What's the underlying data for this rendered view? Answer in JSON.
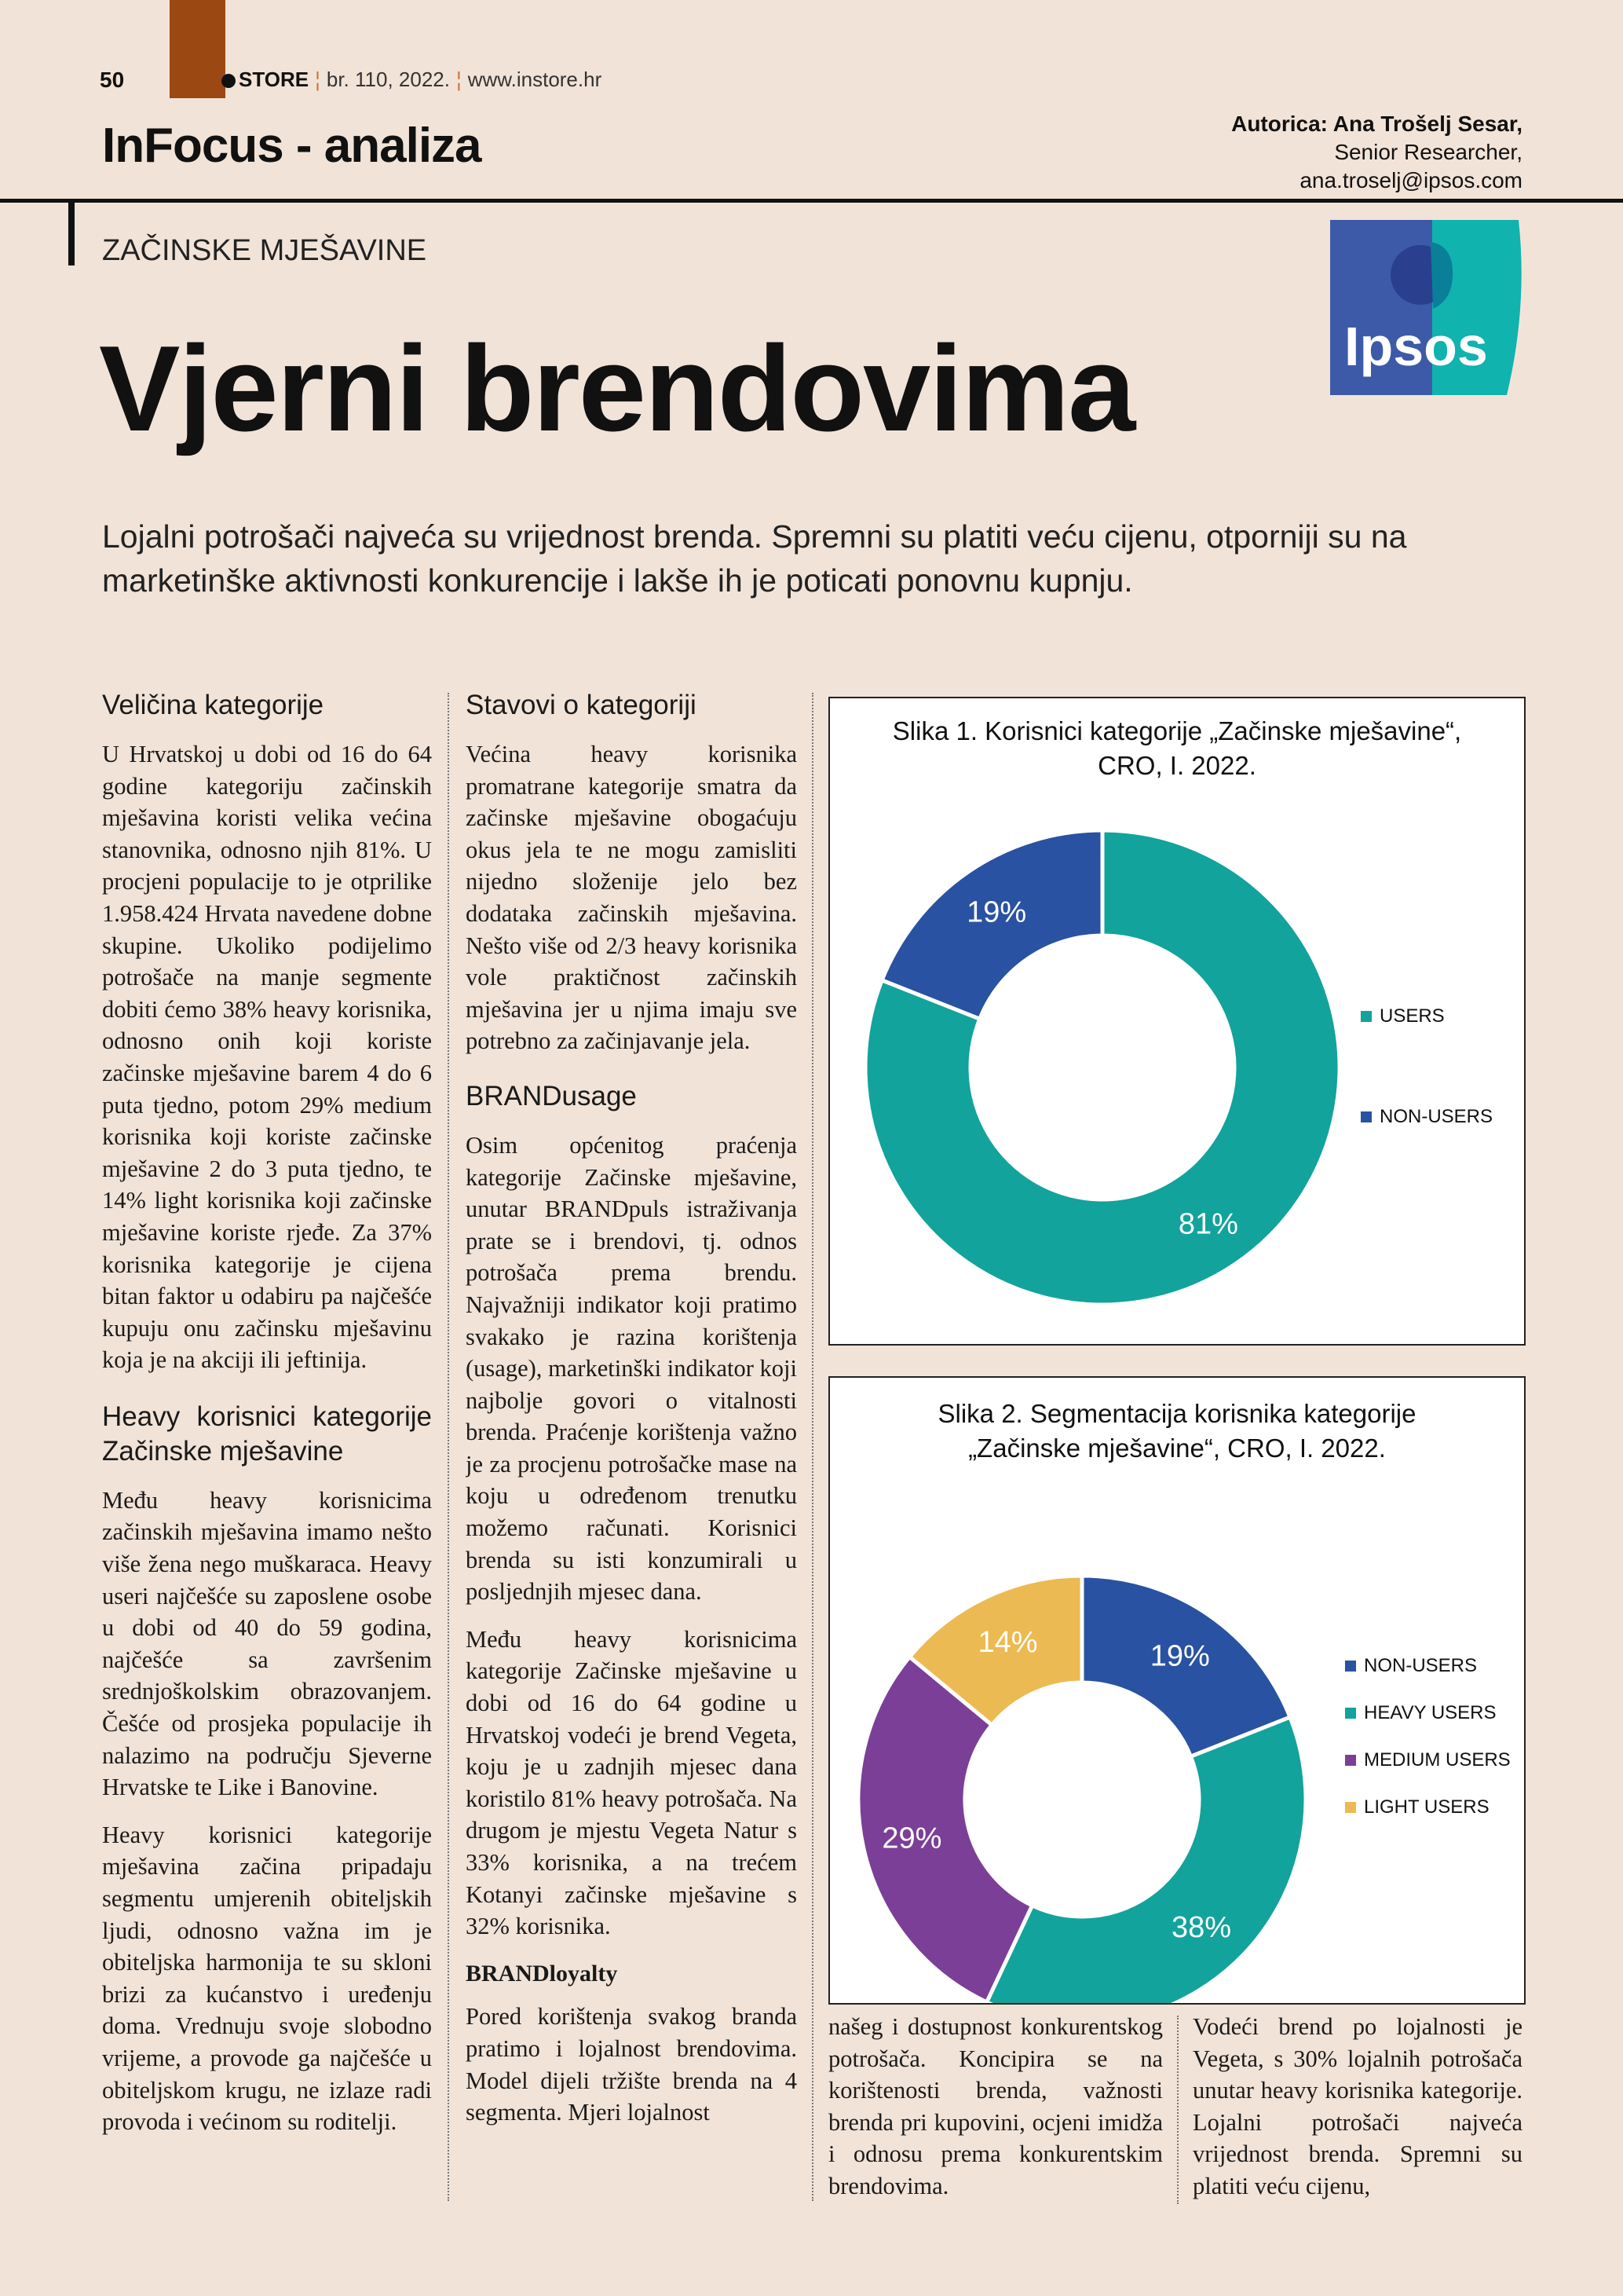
{
  "header": {
    "page_number": "50",
    "brand": "STORE",
    "issue": "br. 110, 2022.",
    "website": "www.instore.hr",
    "section": "InFocus - analiza",
    "author_name": "Autorica: Ana Trošelj Sesar,",
    "author_role": "Senior Researcher,",
    "author_email": "ana.troselj@ipsos.com"
  },
  "article": {
    "kicker": "ZAČINSKE MJEŠAVINE",
    "title": "Vjerni brendovima",
    "lead": "Lojalni potrošači najveća su vrijednost brenda. Spremni su platiti veću cijenu, otporniji su na marketinške aktivnosti konkurencije i lakše ih je poticati ponovnu kupnju.",
    "logo_text": "Ipsos",
    "col1": {
      "h1": "Veličina kategorije",
      "p1": "U Hrvatskoj u dobi od 16 do 64 godine kategoriju začinskih mješavina koristi velika većina stanovnika, odnosno njih 81%. U procjeni populacije to je otprilike 1.958.424 Hrvata navedene dobne skupine. Ukoliko podijelimo potrošače na manje segmente dobiti ćemo 38% heavy korisnika, odnosno onih koji koriste začinske mješavine barem 4 do 6 puta tjedno, potom 29% medium korisnika koji koriste začinske mješavine 2 do 3 puta tjedno, te 14% light korisnika koji začinske mješavine koriste rjeđe. Za 37% korisnika kategorije je cijena bitan faktor u odabiru pa najčešće kupuju onu začinsku mješavinu koja je na akciji ili jeftinija.",
      "h2": "Heavy korisnici kategorije Začinske mješavine",
      "p2": "Među heavy korisnicima začinskih mješavina imamo nešto više žena nego muškaraca. Heavy useri najčešće su zaposlene osobe u dobi od 40 do 59 godina, najčešće sa završenim srednjoškolskim obrazovanjem. Češće od prosjeka populacije ih nalazimo na području Sjeverne Hrvatske te Like i Banovine.",
      "p3": "Heavy korisnici kategorije mješavina začina pripadaju segmentu umjerenih obiteljskih ljudi, odnosno važna im je obiteljska harmonija te su skloni brizi za kućanstvo i uređenju doma. Vrednuju svoje slobodno vrijeme, a provode ga najčešće u obiteljskom krugu, ne izlaze radi provoda i većinom su roditelji."
    },
    "col2": {
      "h1": "Stavovi o kategoriji",
      "p1": "Većina heavy korisnika promatrane kategorije smatra da začinske mješavine obogaćuju okus jela te ne mogu zamisliti nijedno složenije jelo bez dodataka začinskih mješavina. Nešto više od 2/3 heavy korisnika vole praktičnost začinskih mješavina jer u njima imaju sve potrebno za začinjavanje jela.",
      "h2": "BRANDusage",
      "p2": "Osim općenitog praćenja kategorije Začinske mješavine, unutar BRANDpuls istraživanja prate se i brendovi, tj. odnos potrošača prema brendu. Najvažniji indikator koji pratimo svakako je razina korištenja (usage), marketinški indikator koji najbolje govori o vitalnosti brenda. Praćenje korištenja važno je za procjenu potrošačke mase na koju u određenom trenutku možemo računati. Korisnici brenda su isti konzumirali u posljednjih mjesec dana.",
      "p3": "Među heavy korisnicima kategorije Začinske mješavine u dobi od 16 do 64 godine u Hrvatskoj vodeći je brend Vegeta, koju je u zadnjih mjesec dana koristilo 81% heavy potrošača. Na drugom je mjestu Vegeta Natur s 33% korisnika, a na trećem Kotanyi začinske mješavine s 32% korisnika.",
      "h3": "BRANDloyalty",
      "p4": "Pored korištenja svakog branda pratimo i lojalnost brendovima. Model dijeli tržište brenda na 4 segmenta. Mjeri lojalnost"
    },
    "col3": {
      "p1": "našeg i dostupnost konkurentskog potrošača. Koncipira se na korištenosti brenda, važnosti brenda pri kupovini, ocjeni imidža i odnosu prema konkurentskim brendovima."
    },
    "col4": {
      "p1": "Vodeći brend po lojalnosti je Vegeta, s 30% lojalnih potrošača unutar heavy korisnika kategorije. Lojalni potrošači najveća vrijednost brenda. Spremni su platiti veću cijenu,"
    }
  },
  "colors": {
    "background": "#f2e3d8",
    "brand_bar": "#9c4812",
    "teal": "#12a39c",
    "blue": "#2a52a2",
    "purple": "#7b3f98",
    "yellow": "#ecba52"
  },
  "chart_data": [
    {
      "type": "pie",
      "donut": true,
      "title": "Slika 1. Korisnici kategorije „Začinske mješavine“, CRO, I. 2022.",
      "legend_position": "right",
      "slices": [
        {
          "name": "USERS",
          "value": 81,
          "label": "81%",
          "color": "#12a39c"
        },
        {
          "name": "NON-USERS",
          "value": 19,
          "label": "19%",
          "color": "#2a52a2"
        }
      ]
    },
    {
      "type": "pie",
      "donut": true,
      "title": "Slika 2. Segmentacija korisnika kategorije „Začinske mješavine“, CRO, I. 2022.",
      "legend_position": "right",
      "slices": [
        {
          "name": "NON-USERS",
          "value": 19,
          "label": "19%",
          "color": "#2a52a2"
        },
        {
          "name": "HEAVY USERS",
          "value": 38,
          "label": "38%",
          "color": "#12a39c"
        },
        {
          "name": "MEDIUM USERS",
          "value": 29,
          "label": "29%",
          "color": "#7b3f98"
        },
        {
          "name": "LIGHT USERS",
          "value": 14,
          "label": "14%",
          "color": "#ecba52"
        }
      ]
    }
  ]
}
